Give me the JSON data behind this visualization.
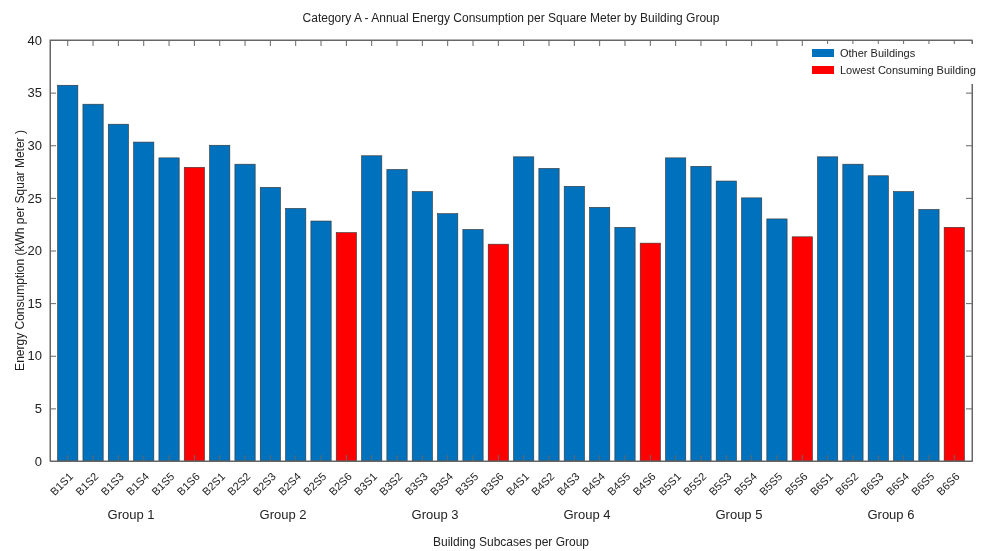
{
  "chart_data": {
    "type": "bar",
    "title": "Category A - Annual Energy Consumption per Square Meter by Building Group",
    "xlabel": "Building Subcases per Group",
    "ylabel": "Energy Consumption (kWh per Squar Meter )",
    "categories": [
      "B1S1",
      "B1S2",
      "B1S3",
      "B1S4",
      "B1S5",
      "B1S6",
      "B2S1",
      "B2S2",
      "B2S3",
      "B2S4",
      "B2S5",
      "B2S6",
      "B3S1",
      "B3S2",
      "B3S3",
      "B3S4",
      "B3S5",
      "B3S6",
      "B4S1",
      "B4S2",
      "B4S3",
      "B4S4",
      "B4S5",
      "B4S6",
      "B5S1",
      "B5S2",
      "B5S3",
      "B5S4",
      "B5S5",
      "B5S6",
      "B6S1",
      "B6S2",
      "B6S3",
      "B6S4",
      "B6S5",
      "B6S6"
    ],
    "series": [
      {
        "name": "Other Buildings",
        "color": "#0072bd",
        "values": [
          35.7,
          33.9,
          32.0,
          30.3,
          28.8,
          null,
          30.0,
          28.2,
          26.0,
          24.0,
          22.8,
          null,
          29.0,
          27.7,
          25.6,
          23.5,
          22.0,
          null,
          28.9,
          27.8,
          26.1,
          24.1,
          22.2,
          null,
          28.8,
          28.0,
          26.6,
          25.0,
          23.0,
          null,
          28.9,
          28.2,
          27.1,
          25.6,
          23.9,
          null
        ]
      },
      {
        "name": "Lowest Consuming Building",
        "color": "#ff0000",
        "values": [
          null,
          null,
          null,
          null,
          null,
          27.9,
          null,
          null,
          null,
          null,
          null,
          21.7,
          null,
          null,
          null,
          null,
          null,
          20.6,
          null,
          null,
          null,
          null,
          null,
          20.7,
          null,
          null,
          null,
          null,
          null,
          21.3,
          null,
          null,
          null,
          null,
          null,
          22.2
        ]
      }
    ],
    "ylim": [
      0,
      40
    ],
    "yticks": [
      0,
      5,
      10,
      15,
      20,
      25,
      30,
      35,
      40
    ],
    "legend": "top right",
    "annotations": [
      "Group 1",
      "Group 2",
      "Group 3",
      "Group 4",
      "Group 5",
      "Group 6"
    ]
  }
}
